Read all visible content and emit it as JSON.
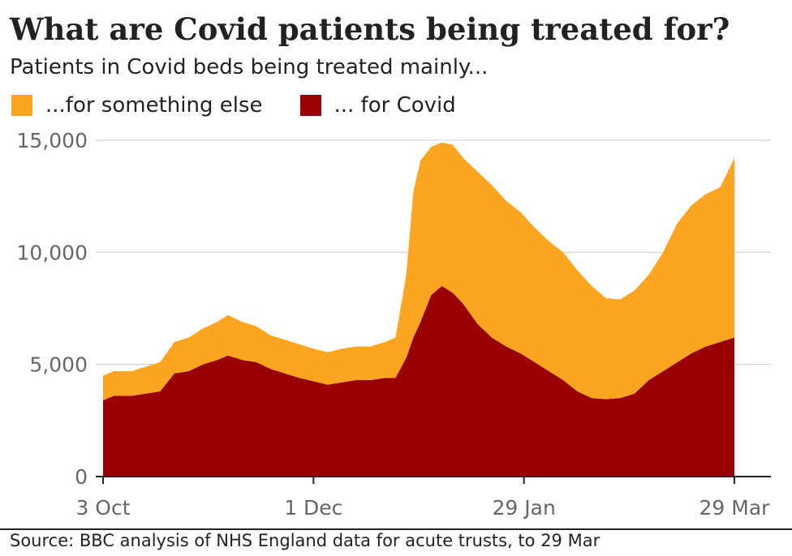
{
  "title": "What are Covid patients being treated for?",
  "subtitle": "Patients in Covid beds being treated mainly...",
  "legend": [
    {
      "label": "...for something else",
      "color": "#fba520"
    },
    {
      "label": "... for Covid",
      "color": "#990000"
    }
  ],
  "source": "Source: BBC analysis of NHS England data for acute trusts, to 29 Mar",
  "chart_data": {
    "type": "area",
    "stacked": true,
    "x_range": [
      "2021-10-03",
      "2022-03-29"
    ],
    "xticks": [
      {
        "label": "3 Oct",
        "x": "2021-10-03"
      },
      {
        "label": "1 Dec",
        "x": "2021-12-01"
      },
      {
        "label": "29 Jan",
        "x": "2022-01-29"
      },
      {
        "label": "29 Mar",
        "x": "2022-03-29"
      }
    ],
    "yticks": [
      {
        "label": "0",
        "value": 0
      },
      {
        "label": "5,000",
        "value": 5000
      },
      {
        "label": "10,000",
        "value": 10000
      },
      {
        "label": "15,000",
        "value": 15000
      }
    ],
    "ylim": [
      0,
      15000
    ],
    "grid": true,
    "x": [
      "2021-10-03",
      "2021-10-06",
      "2021-10-11",
      "2021-10-15",
      "2021-10-19",
      "2021-10-23",
      "2021-10-27",
      "2021-10-31",
      "2021-11-04",
      "2021-11-07",
      "2021-11-11",
      "2021-11-15",
      "2021-11-19",
      "2021-11-23",
      "2021-11-27",
      "2021-12-01",
      "2021-12-05",
      "2021-12-09",
      "2021-12-13",
      "2021-12-17",
      "2021-12-21",
      "2021-12-24",
      "2021-12-27",
      "2021-12-29",
      "2021-12-31",
      "2022-01-03",
      "2022-01-06",
      "2022-01-09",
      "2022-01-12",
      "2022-01-16",
      "2022-01-20",
      "2022-01-24",
      "2022-01-28",
      "2022-02-01",
      "2022-02-05",
      "2022-02-09",
      "2022-02-13",
      "2022-02-17",
      "2022-02-21",
      "2022-02-25",
      "2022-03-01",
      "2022-03-05",
      "2022-03-09",
      "2022-03-13",
      "2022-03-17",
      "2022-03-21",
      "2022-03-25",
      "2022-03-29"
    ],
    "series": [
      {
        "name": "... for Covid",
        "color": "#990000",
        "values": [
          3400,
          3600,
          3600,
          3700,
          3800,
          4600,
          4700,
          5000,
          5200,
          5400,
          5200,
          5100,
          4800,
          4600,
          4400,
          4250,
          4100,
          4200,
          4300,
          4300,
          4400,
          4400,
          5300,
          6200,
          6900,
          8100,
          8500,
          8200,
          7700,
          6800,
          6200,
          5800,
          5500,
          5100,
          4700,
          4300,
          3800,
          3500,
          3450,
          3500,
          3700,
          4300,
          4700,
          5100,
          5500,
          5800,
          6000,
          6200
        ]
      },
      {
        "name": "...for something else",
        "color": "#fba520",
        "values": [
          1100,
          1100,
          1100,
          1200,
          1300,
          1400,
          1500,
          1600,
          1700,
          1800,
          1700,
          1600,
          1500,
          1500,
          1500,
          1450,
          1450,
          1500,
          1500,
          1500,
          1600,
          1800,
          3700,
          6500,
          7200,
          6600,
          6400,
          6600,
          6500,
          6800,
          6800,
          6500,
          6300,
          6000,
          5800,
          5700,
          5400,
          5000,
          4500,
          4400,
          4600,
          4700,
          5300,
          6200,
          6600,
          6800,
          6900,
          8000
        ]
      }
    ]
  }
}
